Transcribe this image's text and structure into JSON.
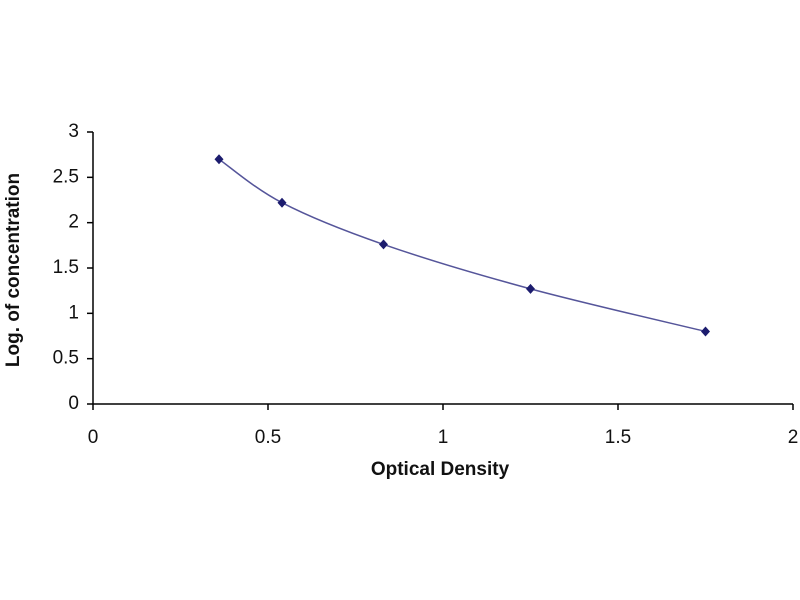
{
  "chart_data": {
    "type": "scatter",
    "x_label": "Optical Density",
    "y_label": "Log. of concentration",
    "x": [
      0.36,
      0.54,
      0.83,
      1.25,
      1.75
    ],
    "values": [
      2.7,
      2.22,
      1.76,
      1.27,
      0.8
    ],
    "color": "#1c1c6e",
    "line_color": "#55559a",
    "smooth_line": true,
    "xlim": [
      0,
      2
    ],
    "xticks": [
      0,
      0.5,
      1,
      1.5,
      2
    ],
    "ylim": [
      0,
      3
    ],
    "yticks": [
      0,
      0.5,
      1,
      1.5,
      2,
      2.5,
      3
    ],
    "grid": false
  }
}
